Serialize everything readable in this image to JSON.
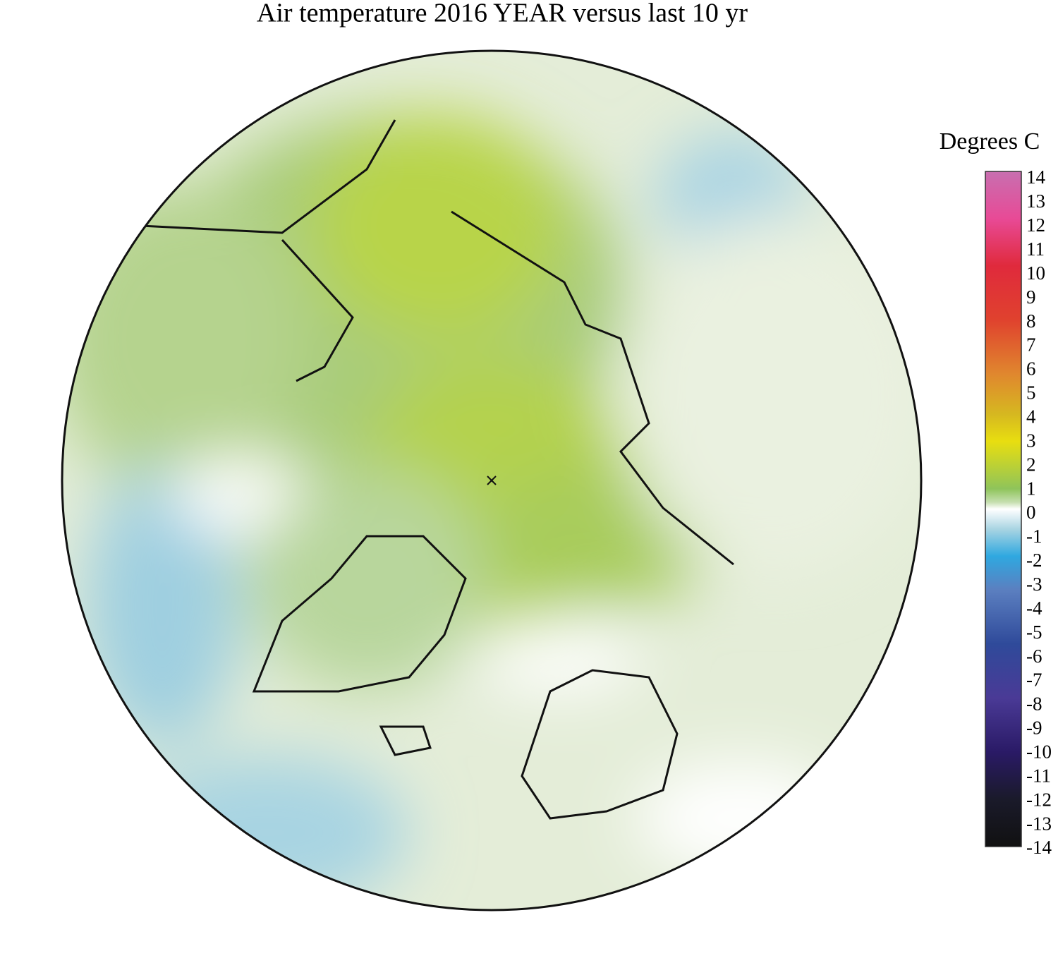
{
  "title": "Air temperature 2016 YEAR versus last 10 yr",
  "colorbar": {
    "label": "Degrees C",
    "ticks": [
      14,
      13,
      12,
      11,
      10,
      9,
      8,
      7,
      6,
      5,
      4,
      3,
      2,
      1,
      0,
      -1,
      -2,
      -3,
      -4,
      -5,
      -6,
      -7,
      -8,
      -9,
      -10,
      -11,
      -12,
      -13,
      -14
    ]
  }
}
